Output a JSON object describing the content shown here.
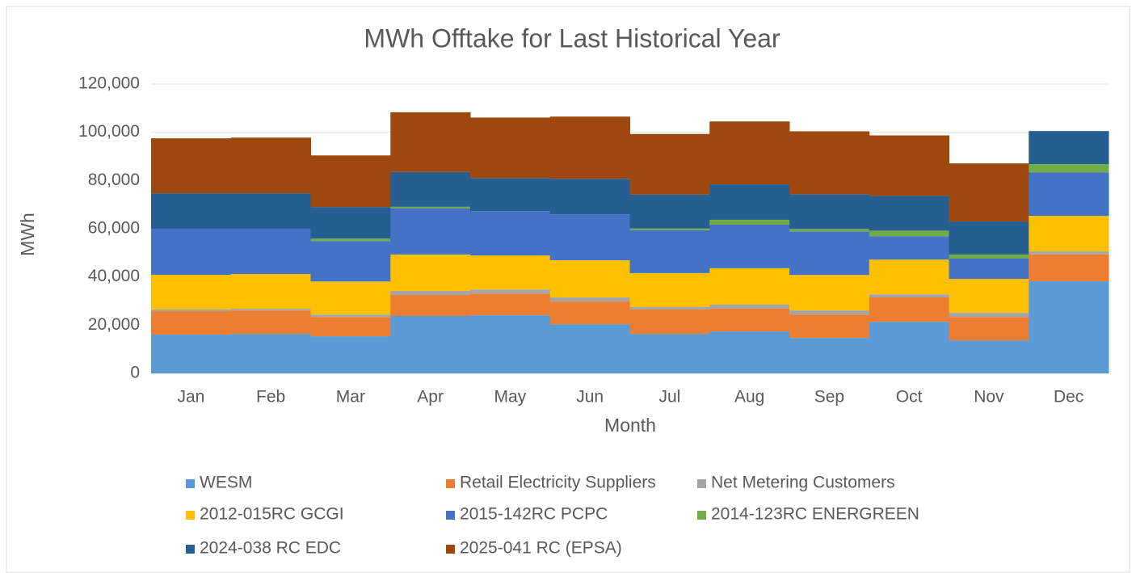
{
  "chart_data": {
    "type": "stacked_bar",
    "title": "MWh Offtake for Last Historical Year",
    "x_label": "Month",
    "y_label": "MWh",
    "categories": [
      "Jan",
      "Feb",
      "Mar",
      "Apr",
      "May",
      "Jun",
      "Jul",
      "Aug",
      "Sep",
      "Oct",
      "Nov",
      "Dec"
    ],
    "ylim": [
      0,
      120000
    ],
    "yticks": [
      0,
      {
        "value": 20000,
        "label": "20,000"
      },
      {
        "value": 40000,
        "label": "40,000"
      },
      {
        "value": 60000,
        "label": "60,000"
      },
      {
        "value": 80000,
        "label": "80,000"
      },
      {
        "value": 100000,
        "label": "100,000"
      },
      {
        "value": 120000,
        "label": "120,000"
      }
    ],
    "grid": true,
    "series": [
      {
        "name": "WESM",
        "color": "#5b9bd5",
        "values": [
          16100,
          16400,
          15400,
          23800,
          24100,
          20400,
          16400,
          17400,
          14700,
          21400,
          13700,
          38200
        ]
      },
      {
        "name": "Retail Electricity Suppliers",
        "color": "#ed7d31",
        "values": [
          9700,
          9700,
          8000,
          8700,
          9000,
          9400,
          10100,
          9400,
          9700,
          10100,
          9700,
          11100
        ]
      },
      {
        "name": "Net Metering Customers",
        "color": "#a5a5a5",
        "values": [
          700,
          700,
          1000,
          1700,
          1700,
          1700,
          1000,
          1700,
          1700,
          1300,
          1700,
          1300
        ]
      },
      {
        "name": "2012-015RC GCGI",
        "color": "#ffc000",
        "values": [
          14400,
          14400,
          13700,
          15100,
          14100,
          15400,
          14100,
          15100,
          14700,
          14400,
          14100,
          14700
        ]
      },
      {
        "name": "2015-142RC PCPC",
        "color": "#4472c4",
        "values": [
          19100,
          18800,
          16800,
          19100,
          18400,
          19100,
          17800,
          18100,
          18100,
          9700,
          8400,
          18100
        ]
      },
      {
        "name": "2014-123RC ENERGREEN",
        "color": "#70ad47",
        "values": [
          0,
          0,
          1000,
          700,
          0,
          0,
          700,
          2000,
          1000,
          2300,
          1700,
          3400
        ]
      },
      {
        "name": "2024-038 RC EDC",
        "color": "#255e91",
        "values": [
          14700,
          14700,
          13100,
          14400,
          13700,
          14700,
          14100,
          14700,
          14400,
          14400,
          13700,
          13700
        ]
      },
      {
        "name": "2025-041 RC (EPSA)",
        "color": "#9e480e",
        "values": [
          22800,
          23100,
          21400,
          24800,
          25100,
          25800,
          25100,
          26100,
          26100,
          25100,
          24100,
          0
        ]
      }
    ]
  }
}
